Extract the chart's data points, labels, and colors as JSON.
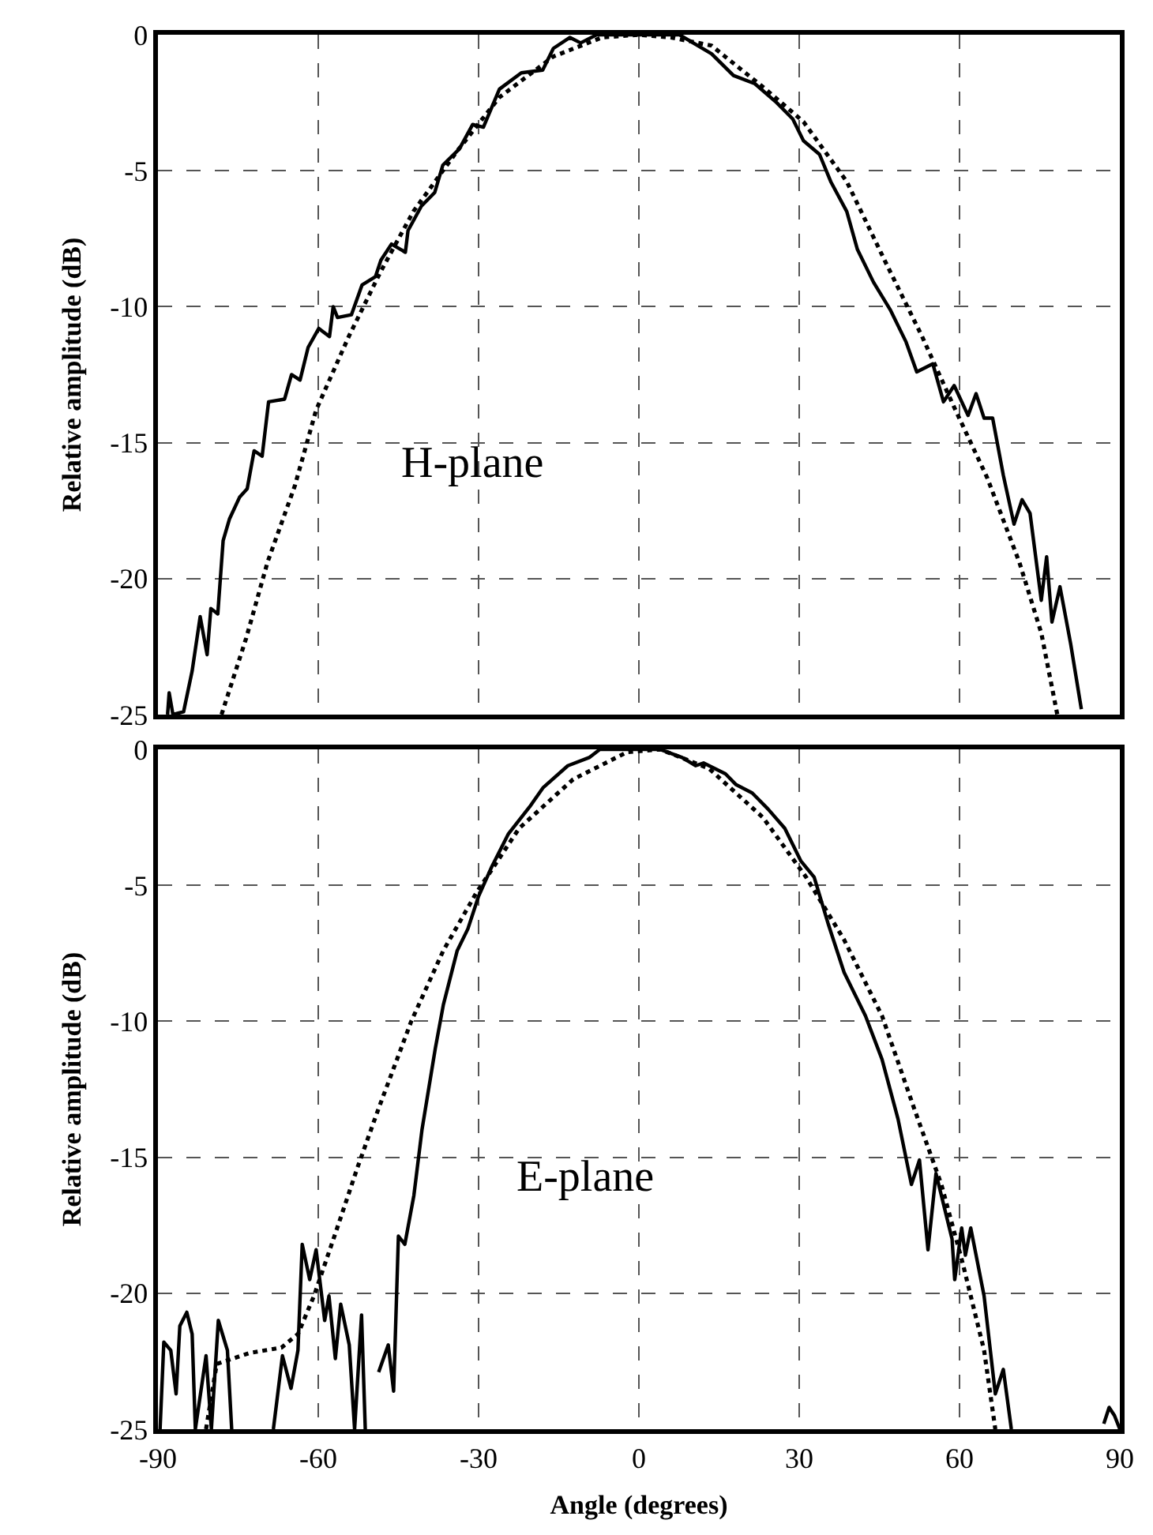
{
  "chart_data": [
    {
      "type": "line",
      "ylabel": "Relative amplitude (dB)",
      "annotations": [
        "H-plane"
      ],
      "xlim": [
        -90,
        90
      ],
      "xticks": [
        -90,
        -60,
        -30,
        0,
        30,
        60,
        90
      ],
      "ylim": [
        -25,
        0
      ],
      "yticks": [
        0,
        -5,
        -10,
        -15,
        -20,
        -25
      ],
      "tick_labels": "y",
      "grid": true,
      "series": [
        {
          "color": "#000000",
          "line_style": "solid",
          "x": [
            -88.2,
            -87.9,
            -87.2,
            -85.2,
            -83.6,
            -82.1,
            -80.8,
            -80.1,
            -78.8,
            -77.8,
            -76.6,
            -74.7,
            -73.3,
            -72,
            -70.5,
            -69.3,
            -66.3,
            -65,
            -63.4,
            -61.9,
            -59.9,
            -57.9,
            -57.2,
            -56.4,
            -53.8,
            -51.8,
            -49.3,
            -48.3,
            -46.3,
            -43.7,
            -43.2,
            -40.7,
            -38.2,
            -36.7,
            -33.6,
            -31.1,
            -29.1,
            -26.1,
            -22,
            -18,
            -16,
            -12.9,
            -10.9,
            -7.9,
            -1.8,
            4,
            7.6,
            13.6,
            17.7,
            21.7,
            25.8,
            28.8,
            30.8,
            33.8,
            35.9,
            38.9,
            40.9,
            43.9,
            47,
            50,
            52,
            55,
            57,
            59,
            61.6,
            63.1,
            64.6,
            66.2,
            68.2,
            70.2,
            71.7,
            73.2,
            75.3,
            76.3,
            77.3,
            78.8,
            80.8,
            82.8
          ],
          "values": [
            -25,
            -24.2,
            -25,
            -24.9,
            -23.4,
            -21.4,
            -22.8,
            -21.1,
            -21.3,
            -18.6,
            -17.8,
            -17,
            -16.7,
            -15.3,
            -15.5,
            -13.5,
            -13.4,
            -12.5,
            -12.7,
            -11.5,
            -10.8,
            -11.1,
            -10,
            -10.4,
            -10.3,
            -9.2,
            -8.9,
            -8.3,
            -7.7,
            -8,
            -7.2,
            -6.3,
            -5.8,
            -4.8,
            -4.2,
            -3.3,
            -3.4,
            -2,
            -1.4,
            -1.3,
            -0.5,
            -0.1,
            -0.3,
            0,
            0,
            0,
            0,
            -0.7,
            -1.5,
            -1.8,
            -2.5,
            -3.1,
            -3.9,
            -4.4,
            -5.4,
            -6.5,
            -7.9,
            -9.1,
            -10.1,
            -11.3,
            -12.4,
            -12.1,
            -13.5,
            -12.9,
            -14,
            -13.2,
            -14.1,
            -14.1,
            -16.2,
            -18,
            -17.1,
            -17.6,
            -20.8,
            -19.2,
            -21.6,
            -20.3,
            -22.4,
            -24.8
          ]
        },
        {
          "color": "#000000",
          "line_style": "dotted",
          "x": [
            -78.1,
            -73.5,
            -69.5,
            -64.4,
            -60.4,
            -54.3,
            -48.3,
            -42.2,
            -34.1,
            -26.1,
            -16,
            -6.9,
            0,
            6,
            13.6,
            23.7,
            30.8,
            38.9,
            46,
            53,
            59,
            65.2,
            71.2,
            75.3,
            78.3
          ],
          "values": [
            -25,
            -22.2,
            -19.4,
            -16.6,
            -13.8,
            -11.1,
            -8.7,
            -6.5,
            -4.3,
            -2.3,
            -0.8,
            -0.1,
            0,
            -0.1,
            -0.4,
            -2,
            -3.2,
            -5.4,
            -8.3,
            -11.1,
            -13.7,
            -16.3,
            -19.4,
            -22,
            -25
          ]
        }
      ]
    },
    {
      "type": "line",
      "ylabel": "Relative amplitude (dB)",
      "xlabel": "Angle (degrees)",
      "annotations": [
        "E-plane"
      ],
      "xlim": [
        -90,
        90
      ],
      "xticks": [
        -90,
        -60,
        -30,
        0,
        30,
        60,
        90
      ],
      "ylim": [
        -25,
        0
      ],
      "yticks": [
        0,
        -5,
        -10,
        -15,
        -20,
        -25
      ],
      "grid": true,
      "series": [
        {
          "color": "#000000",
          "line_style": "solid",
          "x": [
            -89.6,
            -88.9,
            -87.6,
            -86.6,
            -85.9,
            -84.6,
            -83.6,
            -83,
            -81,
            -80,
            -78.7,
            -77,
            -76.2,
            -72,
            -68.4,
            -66.7,
            -65.1,
            -63.8,
            -63,
            -61.6,
            -60.4,
            -58.8,
            -58,
            -56.8,
            -55.8,
            -54.2,
            -53.2,
            -51.9,
            -51.2,
            -50,
            -48.7,
            -46.9,
            -45.9,
            -45,
            -43.8,
            -42.1,
            -40.6,
            -39.6,
            -38.1,
            -36.6,
            -34,
            -32,
            -30,
            -27.5,
            -24.4,
            -20.4,
            -17.9,
            -13.3,
            -9.3,
            -7.3,
            -4.2,
            4,
            8.1,
            10.6,
            12.1,
            16.2,
            18.2,
            21.2,
            24.2,
            27.3,
            30.3,
            32.8,
            35.4,
            38.4,
            42.4,
            45.5,
            48.5,
            51,
            52.5,
            54.1,
            55.6,
            58.6,
            59.1,
            60.4,
            61.1,
            62.1,
            64.6,
            66.7,
            68.2,
            69.7,
            78,
            87,
            88,
            89,
            90
          ],
          "values": [
            -25,
            -21.8,
            -22.1,
            -23.7,
            -21.2,
            -20.7,
            -21.5,
            -25,
            -22.3,
            -25,
            -21,
            -22.1,
            -25,
            null,
            -25,
            -22.3,
            -23.5,
            -22.1,
            -18.2,
            -19.5,
            -18.4,
            -21,
            -20.1,
            -22.4,
            -20.4,
            -21.9,
            -25,
            -20.8,
            -25,
            null,
            -22.9,
            -21.9,
            -23.6,
            -17.9,
            -18.2,
            -16.4,
            -14,
            -12.8,
            -11,
            -9.4,
            -7.4,
            -6.6,
            -5.4,
            -4.3,
            -3.1,
            -2.1,
            -1.4,
            -0.6,
            -0.3,
            0,
            0,
            0,
            -0.3,
            -0.6,
            -0.5,
            -0.9,
            -1.3,
            -1.6,
            -2.2,
            -2.9,
            -4.1,
            -4.7,
            -6.4,
            -8.2,
            -9.8,
            -11.4,
            -13.6,
            -16,
            -15.1,
            -18.4,
            -15.6,
            -18,
            -19.5,
            -17.6,
            -18.6,
            -17.6,
            -20.1,
            -23.7,
            -22.8,
            -25,
            null,
            -24.8,
            -24.2,
            -24.5,
            -25
          ]
        },
        {
          "color": "#000000",
          "line_style": "dotted",
          "x": [
            -81,
            -79,
            -72.9,
            -66.9,
            -63.8,
            -60.8,
            -56.8,
            -52.7,
            -48.7,
            -42.6,
            -36.6,
            -30.5,
            -22.4,
            -12.3,
            -2.2,
            4,
            13.1,
            23.2,
            31.3,
            38.4,
            45.5,
            51.5,
            56.6,
            60.6,
            64.6,
            66.7
          ],
          "values": [
            -25,
            -22.6,
            -22.2,
            -22,
            -21.5,
            -20.1,
            -17.8,
            -15.4,
            -13.2,
            -10,
            -7.4,
            -5.3,
            -2.9,
            -1.1,
            -0.1,
            0,
            -0.7,
            -2.5,
            -4.7,
            -7,
            -9.8,
            -13.2,
            -16,
            -18.9,
            -22.1,
            -25
          ]
        }
      ]
    }
  ]
}
